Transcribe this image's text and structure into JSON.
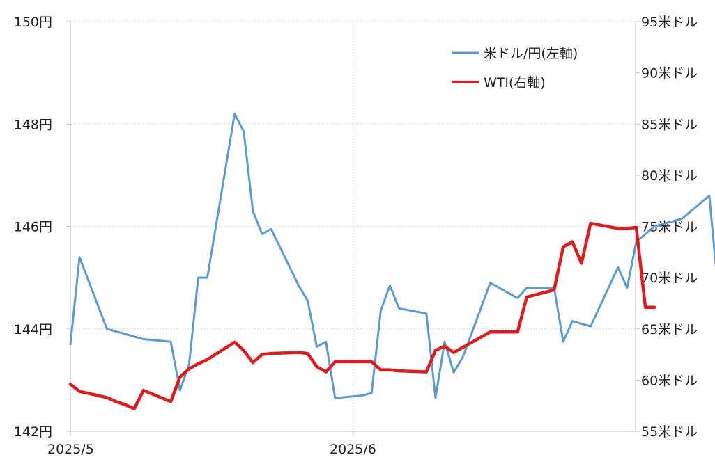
{
  "chart_data": {
    "type": "line",
    "x_tick_labels": [
      "2025/5",
      "2025/6"
    ],
    "left_axis": {
      "ylim": [
        142,
        150
      ],
      "ticks": [
        142,
        144,
        146,
        148,
        150
      ],
      "tick_labels": [
        "142円",
        "144円",
        "146円",
        "148円",
        "150円"
      ]
    },
    "right_axis": {
      "ylim": [
        55,
        95
      ],
      "ticks": [
        55,
        60,
        65,
        70,
        75,
        80,
        85,
        90,
        95
      ],
      "tick_labels": [
        "55米ドル",
        "60米ドル",
        "65米ドル",
        "70米ドル",
        "75米ドル",
        "80米ドル",
        "85米ドル",
        "90米ドル",
        "95米ドル"
      ]
    },
    "grid": true,
    "legend_position": "top-right",
    "series": [
      {
        "name": "米ドル/円(左軸)",
        "axis": "left",
        "color": "#5b9bd5",
        "x": [
          "2025-05-01",
          "2025-05-02",
          "2025-05-05",
          "2025-05-06",
          "2025-05-07",
          "2025-05-08",
          "2025-05-09",
          "2025-05-12",
          "2025-05-13",
          "2025-05-14",
          "2025-05-15",
          "2025-05-16",
          "2025-05-19",
          "2025-05-20",
          "2025-05-21",
          "2025-05-22",
          "2025-05-23",
          "2025-05-26",
          "2025-05-27",
          "2025-05-28",
          "2025-05-29",
          "2025-05-30",
          "2025-06-02",
          "2025-06-03",
          "2025-06-04",
          "2025-06-05",
          "2025-06-06",
          "2025-06-09",
          "2025-06-10",
          "2025-06-11",
          "2025-06-12",
          "2025-06-13",
          "2025-06-16",
          "2025-06-17",
          "2025-06-18",
          "2025-06-19",
          "2025-06-20",
          "2025-06-23",
          "2025-06-24",
          "2025-06-25",
          "2025-06-26",
          "2025-06-27",
          "2025-06-30",
          "2025-07-01",
          "2025-07-02",
          "2025-07-03",
          "2025-07-04",
          "2025-07-07",
          "2025-07-08",
          "2025-07-09",
          "2025-07-10",
          "2025-07-11",
          "2025-07-14",
          "2025-07-15"
        ],
        "values": [
          143.7,
          145.4,
          144.0,
          143.95,
          143.9,
          143.85,
          143.8,
          143.75,
          142.8,
          143.3,
          145.0,
          145.0,
          148.2,
          147.85,
          146.3,
          145.85,
          145.95,
          144.85,
          144.55,
          143.65,
          143.75,
          142.65,
          142.7,
          142.75,
          144.35,
          144.85,
          144.4,
          144.3,
          142.65,
          143.75,
          143.15,
          143.45,
          144.9,
          144.8,
          144.7,
          144.6,
          144.8,
          144.8,
          143.75,
          144.15,
          144.1,
          144.05,
          145.2,
          144.8,
          145.7,
          145.85,
          146.0,
          146.15,
          146.3,
          146.45,
          146.6,
          144.7,
          null,
          null
        ],
        "note_is_estimate": false
      },
      {
        "name": "WTI(右軸)",
        "axis": "right",
        "color": "#e31a1c",
        "x": [
          "2025-05-01",
          "2025-05-02",
          "2025-05-05",
          "2025-05-06",
          "2025-05-07",
          "2025-05-08",
          "2025-05-09",
          "2025-05-12",
          "2025-05-13",
          "2025-05-14",
          "2025-05-15",
          "2025-05-16",
          "2025-05-19",
          "2025-05-20",
          "2025-05-21",
          "2025-05-22",
          "2025-05-23",
          "2025-05-26",
          "2025-05-27",
          "2025-05-28",
          "2025-05-29",
          "2025-05-30",
          "2025-06-02",
          "2025-06-03",
          "2025-06-04",
          "2025-06-05",
          "2025-06-06",
          "2025-06-09",
          "2025-06-10",
          "2025-06-11",
          "2025-06-12",
          "2025-06-13",
          "2025-06-16",
          "2025-06-17",
          "2025-06-18",
          "2025-06-19",
          "2025-06-20",
          "2025-06-23",
          "2025-06-24",
          "2025-06-25",
          "2025-06-26",
          "2025-06-27",
          "2025-06-30",
          "2025-07-01",
          "2025-07-02",
          "2025-07-03",
          "2025-07-04",
          "2025-07-07",
          "2025-07-08",
          "2025-07-09",
          "2025-07-10",
          "2025-07-11",
          "2025-07-14",
          "2025-07-15"
        ],
        "values": [
          59.6,
          58.9,
          58.3,
          57.9,
          57.6,
          57.2,
          59.0,
          57.9,
          60.3,
          61.1,
          61.6,
          62.0,
          63.7,
          62.9,
          61.7,
          62.5,
          62.6,
          62.7,
          62.6,
          61.3,
          60.8,
          61.8,
          61.8,
          61.8,
          61.0,
          61.0,
          60.9,
          60.8,
          62.9,
          63.3,
          62.7,
          63.2,
          64.7,
          64.7,
          64.7,
          64.7,
          68.1,
          68.8,
          73.0,
          73.5,
          71.4,
          75.3,
          74.8,
          74.8,
          74.9,
          67.1,
          67.1,
          null,
          null,
          null,
          null,
          null,
          null,
          null
        ]
      }
    ]
  }
}
